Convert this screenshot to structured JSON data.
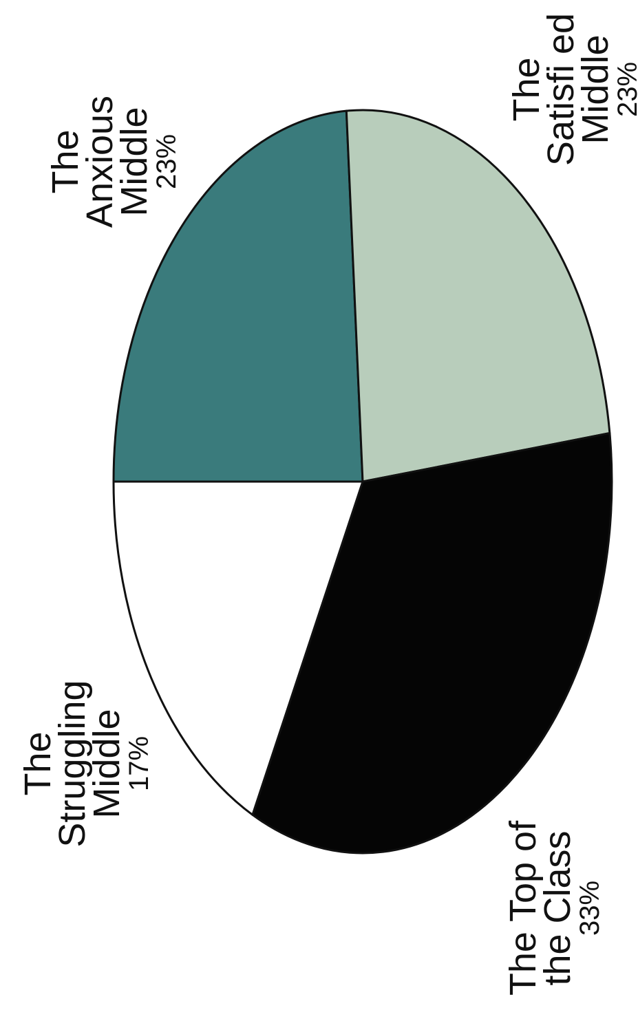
{
  "chart_data": {
    "type": "pie",
    "title": "",
    "slices": [
      {
        "label_lines": [
          "The",
          "Anxious",
          "Middle"
        ],
        "value_label": "23%",
        "value": 23,
        "color": "#3a7b7c"
      },
      {
        "label_lines": [
          "The",
          "Satisfi ed",
          "Middle"
        ],
        "value_label": "23%",
        "value": 23,
        "color": "#b8cdbb"
      },
      {
        "label_lines": [
          "The Top of",
          "the Class"
        ],
        "value_label": "33%",
        "value": 33,
        "color": "#050505"
      },
      {
        "label_lines": [
          "The",
          "Struggling",
          "Middle"
        ],
        "value_label": "17%",
        "value": 17,
        "color": "#ffffff"
      }
    ]
  }
}
